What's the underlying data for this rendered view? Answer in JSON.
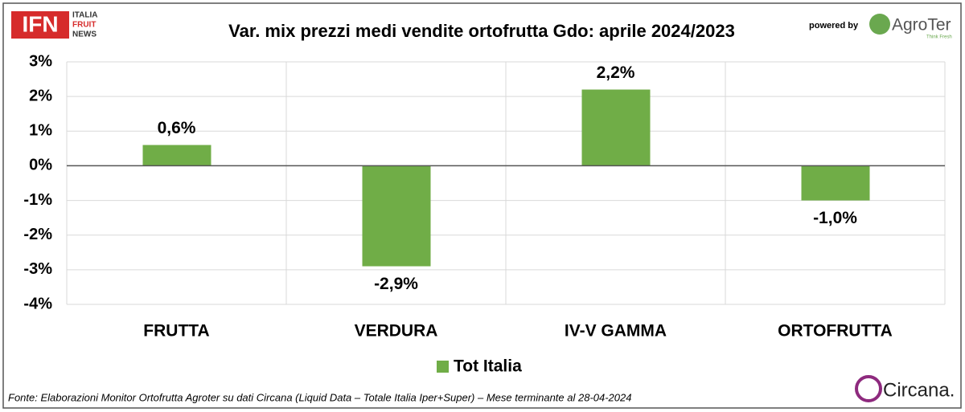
{
  "chart_data": {
    "type": "bar",
    "title": "Var. mix prezzi medi vendite ortofrutta Gdo: aprile 2024/2023",
    "categories": [
      "FRUTTA",
      "VERDURA",
      "IV-V GAMMA",
      "ORTOFRUTTA"
    ],
    "series": [
      {
        "name": "Tot Italia",
        "color": "#70ad47",
        "values": [
          0.6,
          -2.9,
          2.2,
          -1.0
        ],
        "value_labels": [
          "0,6%",
          "-2,9%",
          "2,2%",
          "-1,0%"
        ]
      }
    ],
    "ylim": [
      -4,
      3
    ],
    "yticks": [
      {
        "value": -4,
        "label": "-4%"
      },
      {
        "value": -3,
        "label": "-3%"
      },
      {
        "value": -2,
        "label": "-2%"
      },
      {
        "value": -1,
        "label": "-1%"
      },
      {
        "value": 0,
        "label": "0%"
      },
      {
        "value": 1,
        "label": "1%"
      },
      {
        "value": 2,
        "label": "2%"
      },
      {
        "value": 3,
        "label": "3%"
      }
    ],
    "grid": true,
    "legend": "bottom",
    "footnote": "Fonte: Elaborazioni Monitor Ortofrutta Agroter su dati Circana (Liquid Data – Totale Italia Iper+Super) – Mese terminante al 28-04-2024"
  },
  "logos": {
    "ifn": "IFN",
    "ifn_lines": [
      "ITALIA",
      "FRUIT",
      "NEWS"
    ],
    "powered_by": "powered by",
    "agroter": "AgroTer",
    "agroter_tagline": "Think Fresh",
    "circana": "Circana."
  }
}
